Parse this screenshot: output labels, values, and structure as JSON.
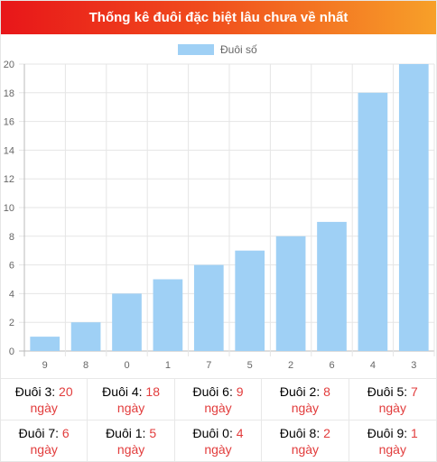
{
  "header": {
    "title": "Thống kê đuôi đặc biệt lâu chưa về nhất"
  },
  "chart_data": {
    "type": "bar",
    "legend": {
      "label": "Đuôi số",
      "position": "top"
    },
    "categories": [
      "9",
      "8",
      "0",
      "1",
      "7",
      "5",
      "2",
      "6",
      "4",
      "3"
    ],
    "series": [
      {
        "name": "Đuôi số",
        "values": [
          1,
          2,
          4,
          5,
          6,
          7,
          8,
          9,
          18,
          20
        ]
      }
    ],
    "ylim": [
      0,
      20
    ],
    "yticks": [
      "0",
      "2",
      "4",
      "6",
      "8",
      "10",
      "12",
      "14",
      "16",
      "18",
      "20"
    ],
    "grid": true,
    "bar_color": "#9fd0f5"
  },
  "stats": {
    "unit": "ngày",
    "items": [
      {
        "label": "Đuôi 3:",
        "value": "20"
      },
      {
        "label": "Đuôi 4:",
        "value": "18"
      },
      {
        "label": "Đuôi 6:",
        "value": "9"
      },
      {
        "label": "Đuôi 2:",
        "value": "8"
      },
      {
        "label": "Đuôi 5:",
        "value": "7"
      },
      {
        "label": "Đuôi 7:",
        "value": "6"
      },
      {
        "label": "Đuôi 1:",
        "value": "5"
      },
      {
        "label": "Đuôi 0:",
        "value": "4"
      },
      {
        "label": "Đuôi 8:",
        "value": "2"
      },
      {
        "label": "Đuôi 9:",
        "value": "1"
      }
    ]
  }
}
